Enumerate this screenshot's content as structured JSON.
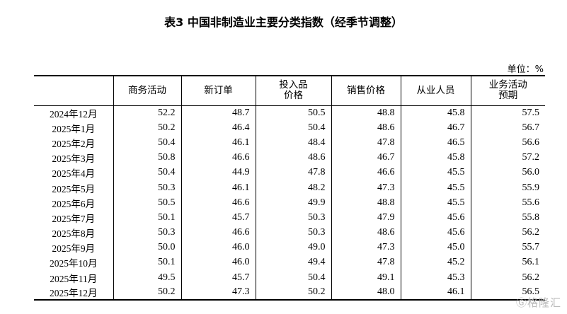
{
  "title": "表3 中国非制造业主要分类指数（经季节调整）",
  "unit": "单位：%",
  "columns": [
    "",
    "商务活动",
    "新订单",
    "投入品\n价格",
    "销售价格",
    "从业人员",
    "业务活动\n预期"
  ],
  "rows": [
    [
      "2024年12月",
      "52.2",
      "48.7",
      "50.5",
      "48.8",
      "45.8",
      "57.5"
    ],
    [
      "2025年1月",
      "50.2",
      "46.4",
      "50.4",
      "48.6",
      "46.7",
      "56.7"
    ],
    [
      "2025年2月",
      "50.4",
      "46.1",
      "48.4",
      "47.8",
      "46.5",
      "56.6"
    ],
    [
      "2025年3月",
      "50.8",
      "46.6",
      "48.6",
      "46.7",
      "45.8",
      "57.2"
    ],
    [
      "2025年4月",
      "50.4",
      "44.9",
      "47.8",
      "46.6",
      "45.5",
      "56.0"
    ],
    [
      "2025年5月",
      "50.3",
      "46.1",
      "48.2",
      "47.3",
      "45.5",
      "55.9"
    ],
    [
      "2025年6月",
      "50.5",
      "46.6",
      "49.9",
      "48.8",
      "45.5",
      "55.6"
    ],
    [
      "2025年7月",
      "50.1",
      "45.7",
      "50.3",
      "47.9",
      "45.6",
      "55.8"
    ],
    [
      "2025年8月",
      "50.3",
      "46.6",
      "50.3",
      "48.6",
      "45.6",
      "56.2"
    ],
    [
      "2025年9月",
      "50.0",
      "46.0",
      "49.0",
      "47.3",
      "45.0",
      "55.7"
    ],
    [
      "2025年10月",
      "50.1",
      "46.0",
      "49.4",
      "47.8",
      "45.2",
      "56.1"
    ],
    [
      "2025年11月",
      "49.5",
      "45.7",
      "50.4",
      "49.1",
      "45.3",
      "56.2"
    ],
    [
      "2025年12月",
      "50.2",
      "47.3",
      "50.2",
      "48.0",
      "46.1",
      "56.5"
    ]
  ],
  "watermark": "格隆汇"
}
